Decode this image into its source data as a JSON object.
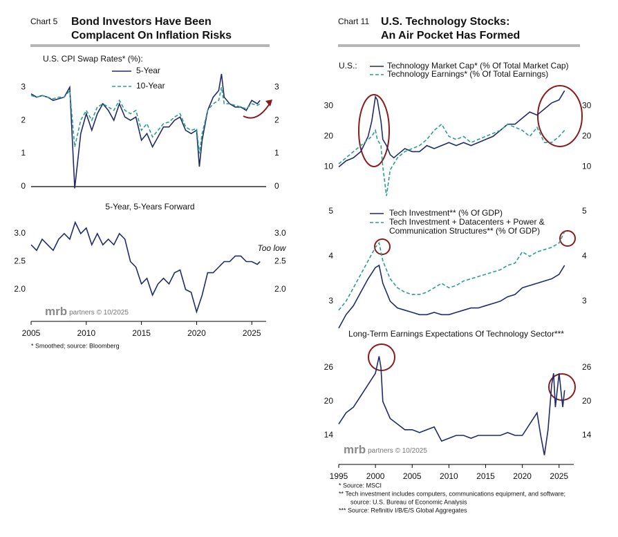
{
  "exhibits": [
    {
      "label": "Chart 5",
      "title": [
        "Bond Investors Have Been",
        "Complacent On Inflation Risks"
      ],
      "footnotes": [
        "* Smoothed; source: Bloomberg"
      ],
      "watermark": {
        "brand": "mrb",
        "text": "partners © 10/2025"
      }
    },
    {
      "label": "Chart 11",
      "title": [
        "U.S. Technology Stocks:",
        "An Air Pocket Has Formed"
      ],
      "footnotes": [
        "*   Source: MSCI",
        "**  Tech investment includes computers, communications equipment, and software;",
        "source: U.S. Bureau of Economic Analysis",
        "*** Source: Refinitiv I/B/E/S Global Aggregates"
      ],
      "watermark": {
        "brand": "mrb",
        "text": "partners © 10/2025"
      }
    }
  ],
  "chart_data": [
    {
      "type": "line",
      "title": "U.S. CPI Swap Rates* (%):",
      "zero_line": true,
      "x": [
        2005,
        2005.5,
        2006,
        2006.5,
        2007,
        2007.5,
        2008,
        2008.5,
        2008.95,
        2009.5,
        2010,
        2010.5,
        2011,
        2011.5,
        2012,
        2012.5,
        2013,
        2013.5,
        2014,
        2014.5,
        2015,
        2015.5,
        2016,
        2016.5,
        2017,
        2017.5,
        2018,
        2018.5,
        2019,
        2019.5,
        2020,
        2020.25,
        2020.5,
        2021,
        2021.5,
        2022,
        2022.25,
        2022.5,
        2023,
        2023.5,
        2024,
        2024.5,
        2025,
        2025.5,
        2025.75
      ],
      "xlim": [
        2005,
        2026.3
      ],
      "ylim": [
        -0.25,
        3.65
      ],
      "yticks": [
        0,
        1,
        2,
        3
      ],
      "series": [
        {
          "name": "5-Year",
          "color": "#1f2a6b",
          "dashed": false,
          "values": [
            2.8,
            2.7,
            2.75,
            2.7,
            2.6,
            2.65,
            2.7,
            3.0,
            -0.05,
            1.6,
            2.2,
            1.7,
            2.2,
            2.5,
            2.3,
            2.0,
            2.5,
            2.1,
            2.0,
            2.1,
            1.4,
            1.6,
            1.2,
            1.5,
            1.8,
            1.8,
            2.0,
            2.1,
            1.7,
            1.6,
            1.7,
            0.6,
            1.4,
            2.3,
            2.7,
            2.9,
            3.4,
            2.7,
            2.5,
            2.4,
            2.4,
            2.3,
            2.6,
            2.5,
            2.6
          ]
        },
        {
          "name": "10-Year",
          "color": "#2a9d8f",
          "dashed": true,
          "values": [
            2.75,
            2.7,
            2.75,
            2.7,
            2.65,
            2.7,
            2.7,
            2.9,
            1.2,
            2.0,
            2.3,
            2.0,
            2.4,
            2.5,
            2.4,
            2.3,
            2.6,
            2.3,
            2.2,
            2.3,
            1.7,
            1.9,
            1.5,
            1.7,
            1.9,
            1.95,
            2.1,
            2.2,
            1.8,
            1.7,
            1.75,
            1.0,
            1.6,
            2.3,
            2.5,
            2.6,
            3.0,
            2.5,
            2.5,
            2.45,
            2.4,
            2.35,
            2.5,
            2.45,
            2.5
          ]
        }
      ]
    },
    {
      "type": "line",
      "title": "5-Year, 5-Years Forward",
      "annotation": "Too low",
      "x": [
        2005,
        2005.5,
        2006,
        2006.5,
        2007,
        2007.5,
        2008,
        2008.5,
        2009,
        2009.5,
        2010,
        2010.5,
        2011,
        2011.5,
        2012,
        2012.5,
        2013,
        2013.5,
        2014,
        2014.5,
        2015,
        2015.5,
        2016,
        2016.5,
        2017,
        2017.5,
        2018,
        2018.5,
        2019,
        2019.5,
        2020,
        2020.5,
        2021,
        2021.5,
        2022,
        2022.5,
        2023,
        2023.5,
        2024,
        2024.5,
        2025,
        2025.5,
        2025.75
      ],
      "xlim": [
        2005,
        2026.3
      ],
      "xticks": [
        2005,
        2010,
        2015,
        2020,
        2025
      ],
      "ylim": [
        1.43,
        3.47
      ],
      "yticks": [
        {
          "value": 2,
          "label": "2.0"
        },
        2.5,
        {
          "value": 3,
          "label": "3.0"
        }
      ],
      "series": [
        {
          "color": "#1f2a6b",
          "dashed": false,
          "values": [
            2.8,
            2.7,
            2.9,
            2.8,
            2.7,
            2.9,
            3.0,
            2.9,
            3.2,
            3.0,
            3.1,
            2.8,
            3.0,
            2.8,
            2.9,
            2.8,
            3.0,
            2.9,
            2.5,
            2.4,
            2.1,
            2.2,
            1.9,
            2.1,
            2.2,
            2.1,
            2.3,
            2.35,
            2.0,
            1.95,
            1.6,
            1.9,
            2.3,
            2.3,
            2.4,
            2.5,
            2.5,
            2.6,
            2.6,
            2.5,
            2.5,
            2.45,
            2.5
          ]
        }
      ]
    },
    {
      "type": "line",
      "legend_prefix": "U.S.:",
      "x": [
        1995,
        1996,
        1997,
        1998,
        1999,
        1999.5,
        2000,
        2000.25,
        2000.75,
        2001,
        2001.5,
        2002,
        2002.5,
        2003,
        2004,
        2005,
        2006,
        2007,
        2008,
        2009,
        2010,
        2011,
        2012,
        2013,
        2014,
        2015,
        2016,
        2017,
        2018,
        2019,
        2020,
        2021,
        2022,
        2023,
        2024,
        2025,
        2025.75
      ],
      "xlim": [
        1995,
        2027
      ],
      "ylim": [
        -1,
        38
      ],
      "yticks": [
        10,
        20,
        30
      ],
      "series": [
        {
          "name": "Technology Market Cap* (% Of Total Market Cap)",
          "color": "#1f2a6b",
          "dashed": false,
          "values": [
            10,
            12,
            13,
            15,
            20,
            25,
            33,
            32,
            25,
            19,
            17,
            14,
            13,
            14,
            16,
            15,
            15,
            17,
            16,
            17,
            18,
            17,
            18,
            17,
            18,
            19,
            20,
            22,
            24,
            24,
            26,
            28,
            27,
            29,
            31,
            32,
            35
          ]
        },
        {
          "name": "Technology Earnings* (% Of Total Earnings)",
          "color": "#2a9d8f",
          "dashed": true,
          "values": [
            11,
            13,
            15,
            17,
            19,
            20,
            22,
            19,
            17,
            10,
            0.5,
            9,
            11,
            13,
            15,
            16,
            17,
            19,
            22,
            24,
            20,
            19,
            20,
            18,
            19,
            20,
            21,
            22,
            24,
            23,
            22,
            20,
            23,
            18,
            18,
            20,
            22
          ]
        }
      ]
    },
    {
      "type": "line",
      "x": [
        1995,
        1996,
        1997,
        1998,
        1999,
        2000,
        2000.5,
        2001,
        2002,
        2003,
        2004,
        2005,
        2006,
        2007,
        2008,
        2009,
        2010,
        2011,
        2012,
        2013,
        2014,
        2015,
        2016,
        2017,
        2018,
        2019,
        2020,
        2021,
        2022,
        2023,
        2024,
        2025,
        2025.75
      ],
      "xlim": [
        1995,
        2027
      ],
      "ylim": [
        2.35,
        5.17
      ],
      "yticks": [
        3,
        4,
        5
      ],
      "series": [
        {
          "name": "Tech Investment** (% Of GDP)",
          "color": "#1f2a6b",
          "dashed": false,
          "values": [
            2.4,
            2.7,
            2.9,
            3.2,
            3.5,
            3.75,
            3.8,
            3.4,
            3.0,
            2.85,
            2.8,
            2.75,
            2.7,
            2.7,
            2.75,
            2.7,
            2.7,
            2.75,
            2.8,
            2.85,
            2.85,
            2.9,
            2.95,
            3.0,
            3.1,
            3.15,
            3.3,
            3.35,
            3.4,
            3.45,
            3.5,
            3.6,
            3.8
          ]
        },
        {
          "name": "Tech Investment + Datacenters + Power & Communication Structures** (% Of GDP)",
          "color": "#2a9d8f",
          "dashed": true,
          "values": [
            2.8,
            3.0,
            3.3,
            3.6,
            3.9,
            4.2,
            4.3,
            3.9,
            3.5,
            3.3,
            3.2,
            3.15,
            3.15,
            3.2,
            3.3,
            3.4,
            3.3,
            3.35,
            3.45,
            3.5,
            3.55,
            3.6,
            3.65,
            3.7,
            3.8,
            3.85,
            4.1,
            4.0,
            4.1,
            4.15,
            4.2,
            4.3,
            4.55
          ]
        }
      ]
    },
    {
      "type": "line",
      "title": "Long-Term Earnings Expectations Of Technology Sector***",
      "x": [
        1995,
        1996,
        1997,
        1998,
        1999,
        2000,
        2000.5,
        2000.75,
        2001,
        2002,
        2003,
        2004,
        2005,
        2006,
        2007,
        2008,
        2009,
        2010,
        2011,
        2012,
        2013,
        2014,
        2015,
        2016,
        2017,
        2018,
        2019,
        2020,
        2021,
        2022,
        2022.5,
        2023,
        2023.5,
        2024,
        2024.25,
        2024.5,
        2025,
        2025.25,
        2025.5,
        2025.75
      ],
      "xlim": [
        1995,
        2027
      ],
      "xticks": [
        1995,
        2000,
        2005,
        2010,
        2015,
        2020,
        2025
      ],
      "ylim": [
        8.86,
        29.9
      ],
      "yticks": [
        14,
        20,
        26
      ],
      "series": [
        {
          "color": "#1f2a6b",
          "dashed": false,
          "values": [
            16,
            18,
            19,
            21,
            23,
            25,
            28,
            26,
            20,
            17,
            16,
            15,
            15,
            14.5,
            15,
            15.5,
            13,
            13.5,
            14,
            14,
            13.5,
            14,
            14,
            14,
            14,
            14.5,
            14,
            14,
            16,
            18,
            14,
            10.5,
            15,
            23,
            25,
            19,
            25,
            22,
            19,
            22
          ]
        }
      ]
    }
  ]
}
